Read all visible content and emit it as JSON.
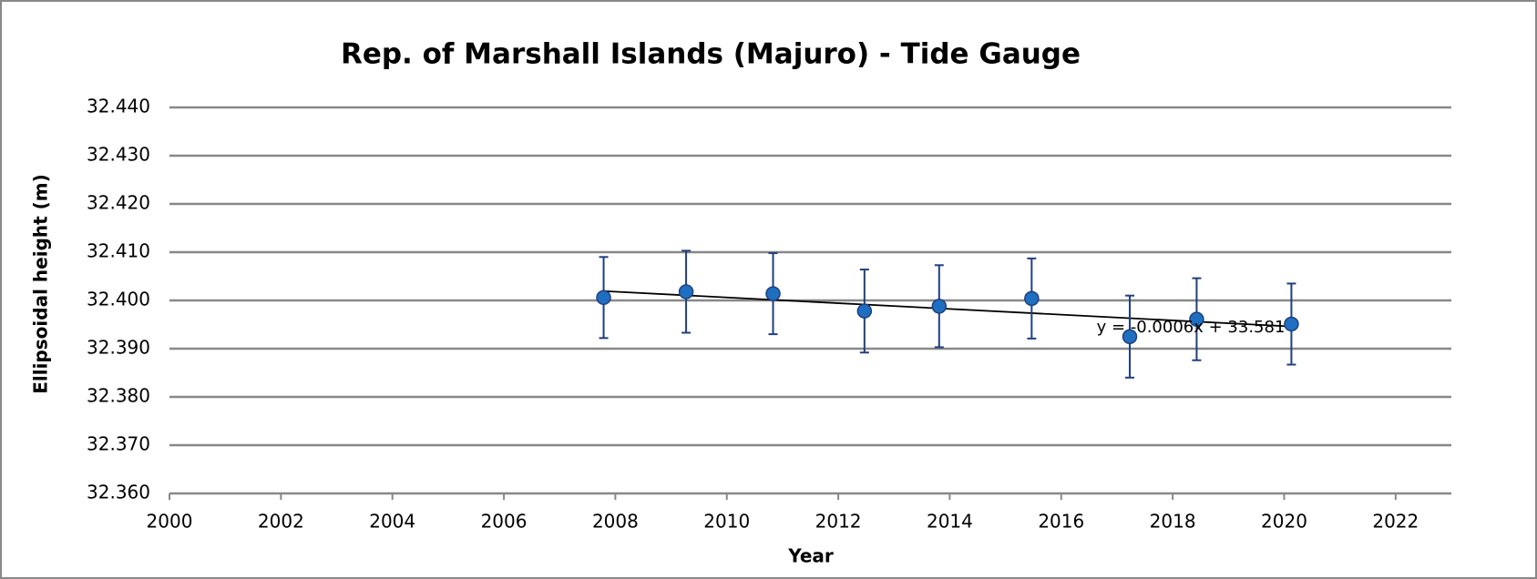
{
  "chart_data": {
    "type": "scatter",
    "title": "Rep. of Marshall Islands (Majuro) - Tide Gauge",
    "x_label": "Year",
    "y_label": "Ellipsoidal height (m)",
    "series": [
      {
        "name": "Tide Gauge",
        "color": "#1f6fc0",
        "x": [
          2007.79,
          2009.27,
          2010.83,
          2012.47,
          2013.81,
          2015.47,
          2017.23,
          2018.43,
          2020.13
        ],
        "values": [
          32.4006,
          32.4018,
          32.4014,
          32.3978,
          32.3988,
          32.4004,
          32.3925,
          32.3961,
          32.3951
        ],
        "errors": [
          0.0084,
          0.0085,
          0.0084,
          0.0086,
          0.0085,
          0.0083,
          0.0085,
          0.0085,
          0.0084
        ]
      }
    ],
    "trendline": {
      "label": "y = -0.0006x + 33.581",
      "color": "#000000"
    },
    "xlim": [
      2000,
      2023
    ],
    "xticks": [
      2000,
      2002,
      2004,
      2006,
      2008,
      2010,
      2012,
      2014,
      2016,
      2018,
      2020,
      2022
    ],
    "ylim": [
      32.36,
      32.44
    ],
    "yticks": [
      {
        "value": 32.36,
        "label": "32.360"
      },
      {
        "value": 32.37,
        "label": "32.370"
      },
      {
        "value": 32.38,
        "label": "32.380"
      },
      {
        "value": 32.39,
        "label": "32.390"
      },
      {
        "value": 32.4,
        "label": "32.400"
      },
      {
        "value": 32.41,
        "label": "32.410"
      },
      {
        "value": 32.42,
        "label": "32.420"
      },
      {
        "value": 32.43,
        "label": "32.430"
      },
      {
        "value": 32.44,
        "label": "32.440"
      }
    ],
    "grid": true
  }
}
